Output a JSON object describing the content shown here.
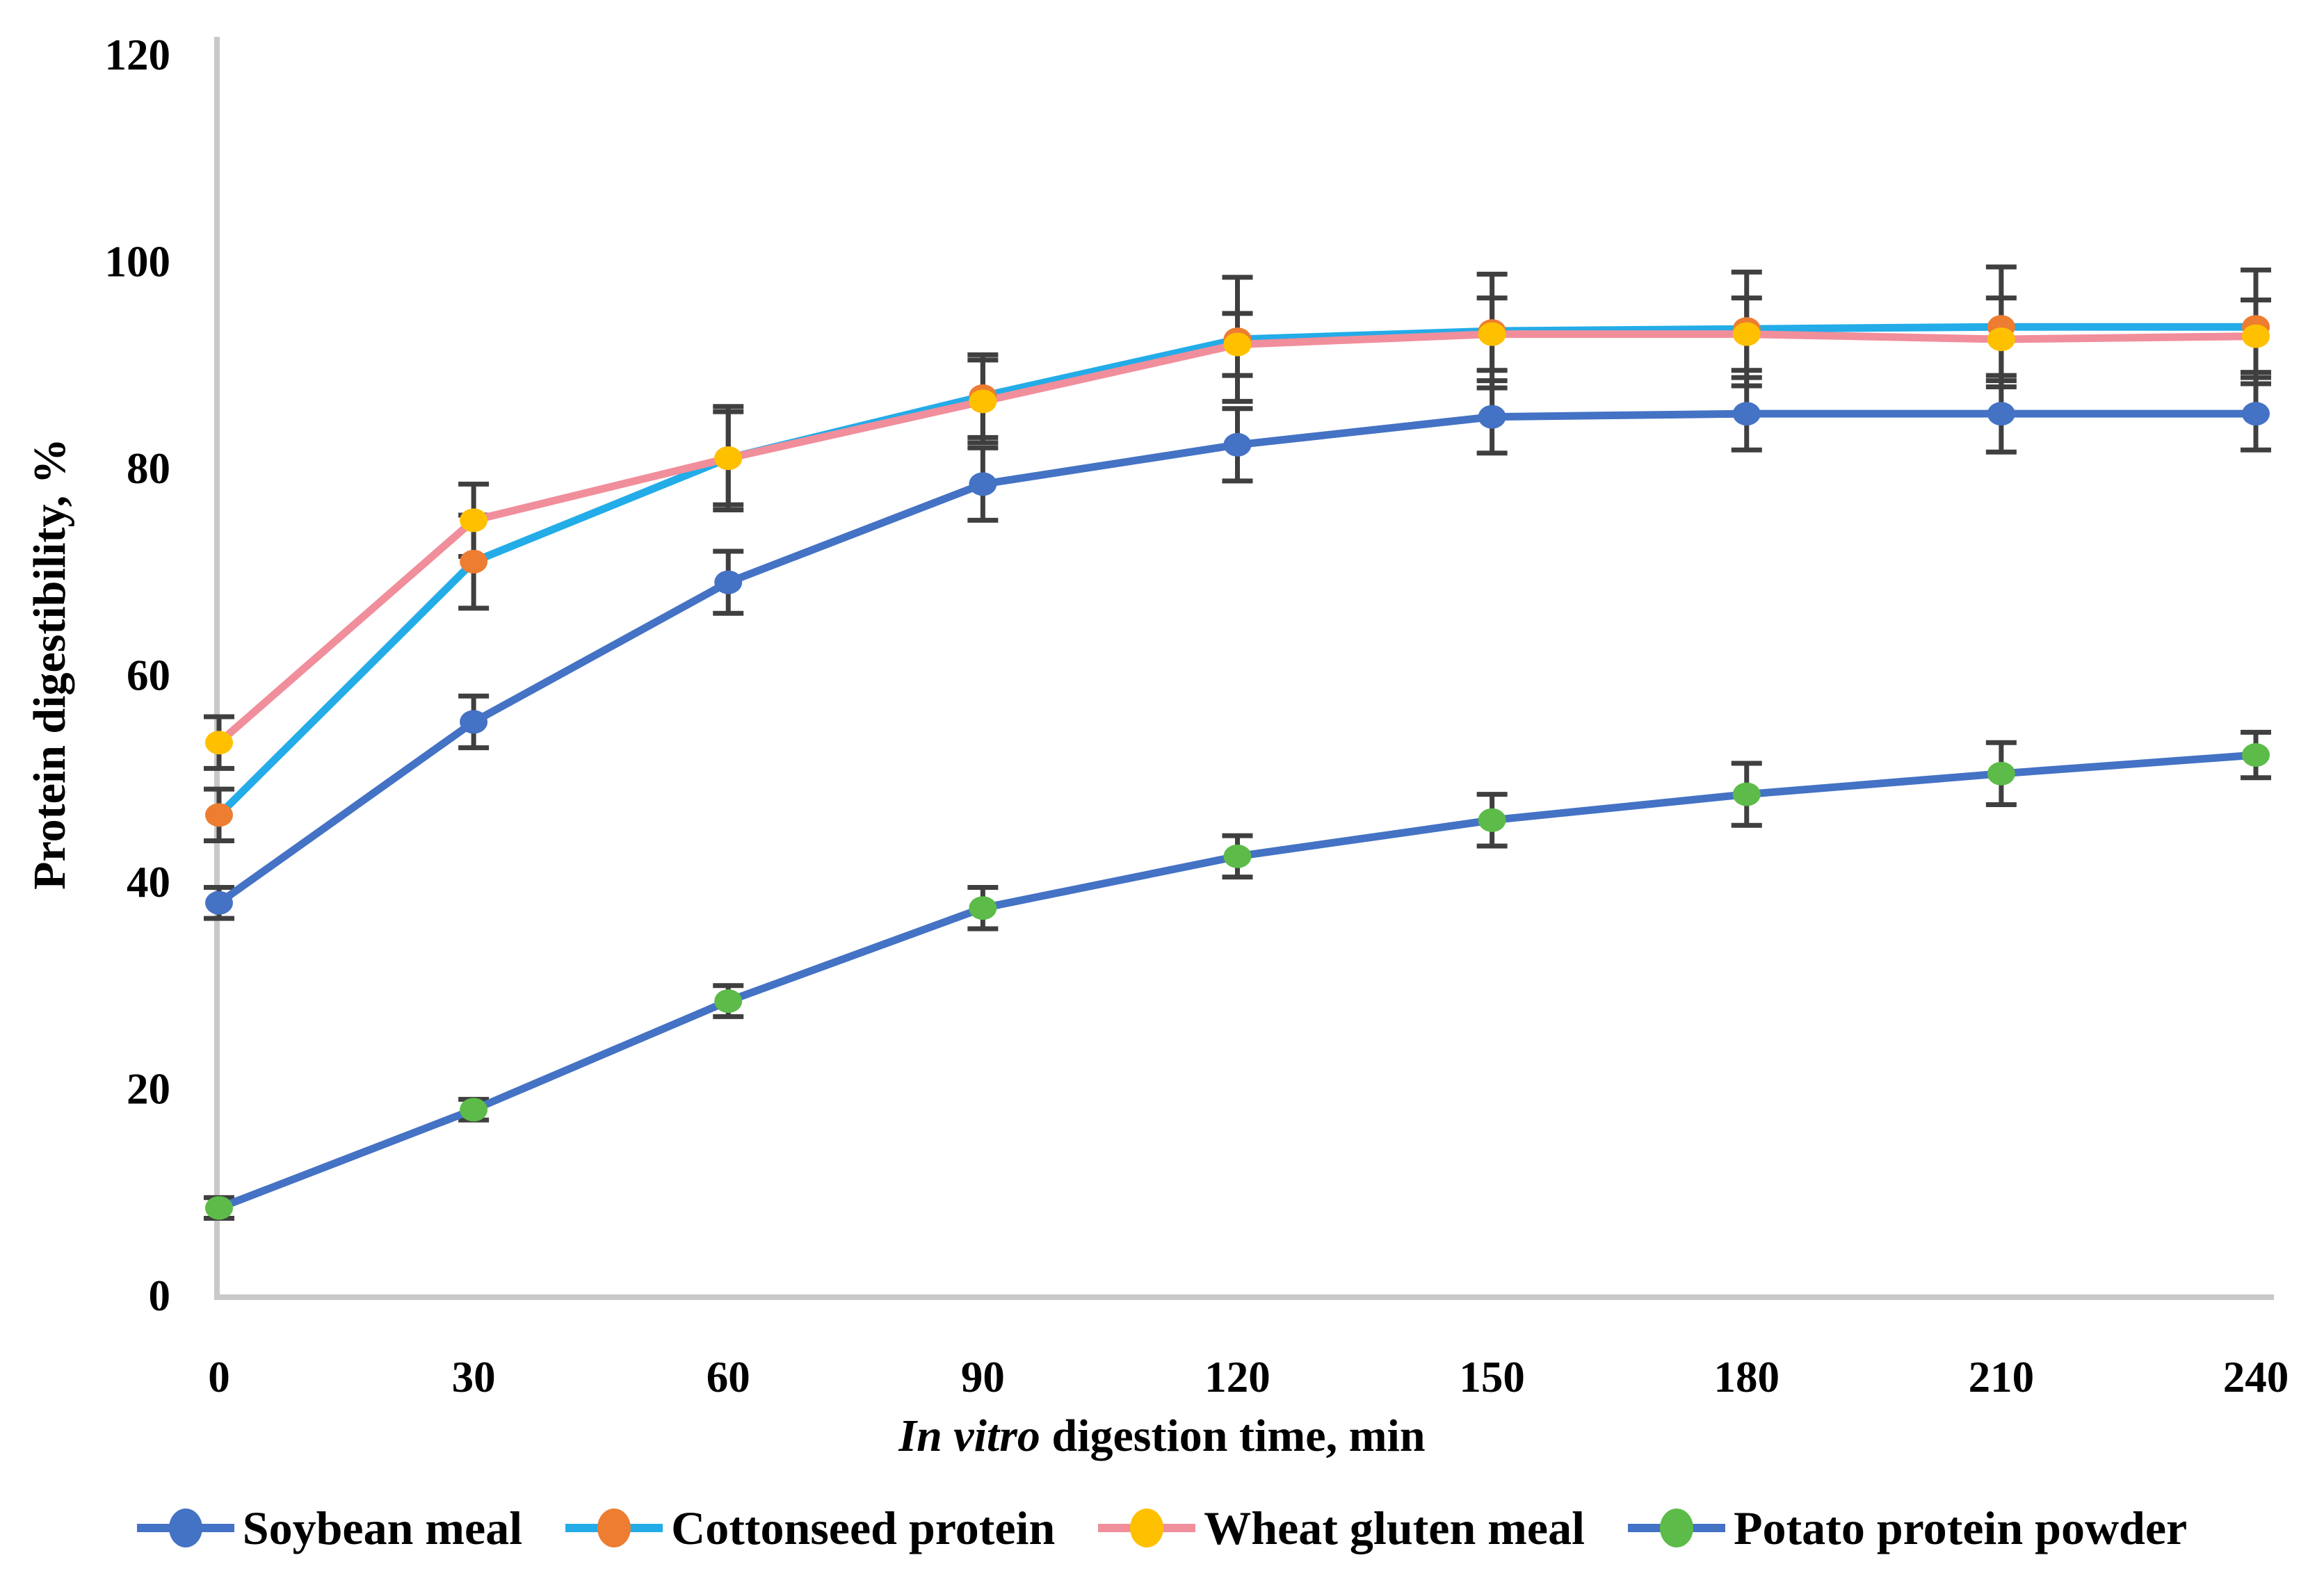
{
  "figure": {
    "ylabel": "Protein digestibility, %",
    "xlabel_italic": "In vitro",
    "xlabel_rest": " digestion time, min"
  },
  "chart_data": {
    "type": "line",
    "title": "",
    "xlabel": "In vitro digestion time, min",
    "ylabel": "Protein digestibility, %",
    "x": [
      0,
      30,
      60,
      90,
      120,
      150,
      180,
      210,
      240
    ],
    "xtick_labels": [
      "0",
      "30",
      "60",
      "90",
      "120",
      "150",
      "180",
      "210",
      "240"
    ],
    "ylim": [
      0,
      120
    ],
    "yticks": [
      0,
      20,
      40,
      60,
      80,
      100,
      120
    ],
    "grid": false,
    "legend_position": "bottom",
    "axis_color": "#c8c8c8",
    "error_bar_color": "#3f3f3f",
    "series": [
      {
        "name": "Soybean meal",
        "line_color": "#4472c4",
        "marker_color": "#4472c4",
        "values": [
          38,
          55.5,
          69,
          78.5,
          82.3,
          85,
          85.3,
          85.3,
          85.3
        ],
        "errors": [
          1.5,
          2.5,
          3,
          3.5,
          3.5,
          3.5,
          3.5,
          3.7,
          3.5
        ]
      },
      {
        "name": "Cottonseed protein",
        "line_color": "#23ace8",
        "marker_color": "#ed7d31",
        "values": [
          46.5,
          71,
          81,
          87,
          92.5,
          93.3,
          93.5,
          93.7,
          93.7
        ],
        "errors": [
          2.5,
          4.5,
          4.5,
          4,
          6,
          5.5,
          5.5,
          5.8,
          5.5
        ]
      },
      {
        "name": "Wheat gluten meal",
        "line_color": "#f18e9b",
        "marker_color": "#ffc000",
        "values": [
          53.5,
          75,
          81,
          86.5,
          92,
          93,
          93,
          92.5,
          92.8
        ],
        "errors": [
          2.5,
          3.5,
          5,
          4,
          3,
          3.5,
          3.5,
          4,
          3.5
        ]
      },
      {
        "name": "Potato protein powder",
        "line_color": "#4472c4",
        "marker_color": "#5cbb49",
        "values": [
          8.5,
          18,
          28.5,
          37.5,
          42.5,
          46,
          48.5,
          50.5,
          52.3
        ],
        "errors": [
          1,
          1,
          1.5,
          2,
          2,
          2.5,
          3,
          3,
          2.2
        ]
      }
    ]
  }
}
